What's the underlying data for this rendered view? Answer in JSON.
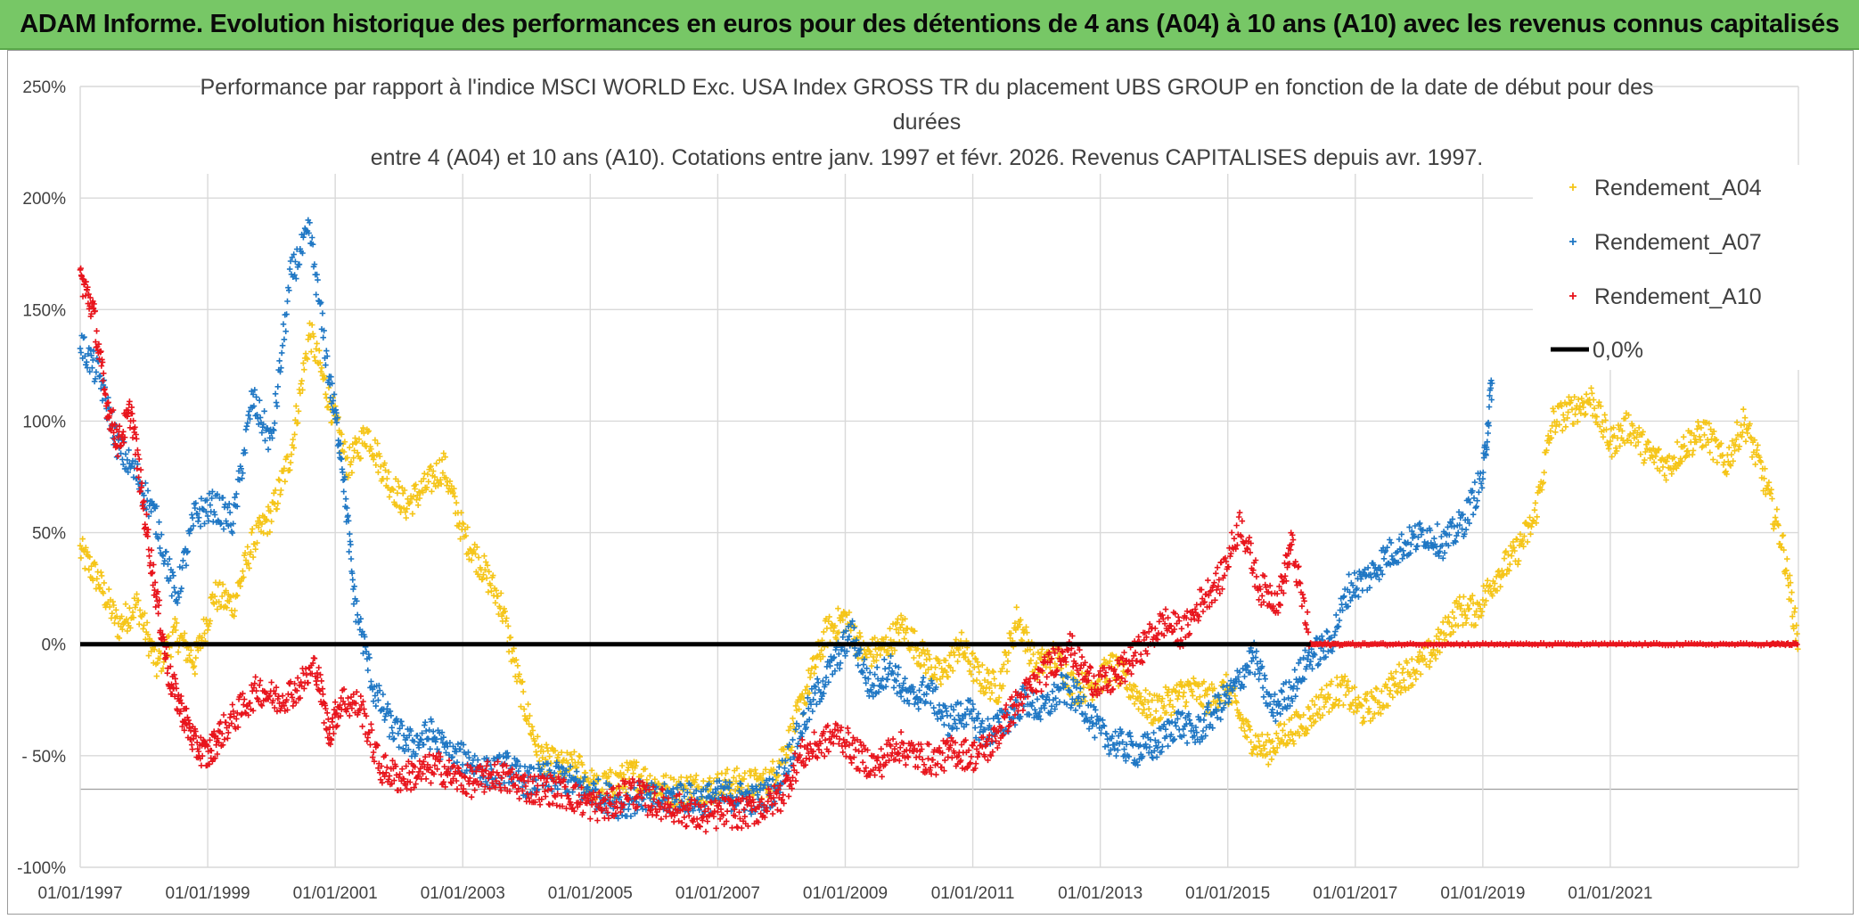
{
  "banner": {
    "text": "ADAM Informe. Evolution historique des performances en euros pour des détentions de 4 ans (A04) à 10 ans (A10) avec les revenus connus capitalisés"
  },
  "colors": {
    "A04": "#f5c518",
    "A07": "#1f77c4",
    "A10": "#e8141c",
    "zero": "#000000",
    "banner_bg": "#77c766"
  },
  "chart_data": {
    "type": "scatter",
    "title_lines": [
      "Performance par rapport à l'indice MSCI WORLD Exc. USA Index GROSS TR  du placement UBS GROUP en fonction de la date de début pour des",
      "durées",
      "entre 4 (A04) et 10 ans (A10). Cotations entre janv. 1997 et févr. 2026. Revenus CAPITALISES depuis avr. 1997."
    ],
    "ylim": [
      -100,
      250
    ],
    "yticks": [
      250,
      200,
      150,
      100,
      50,
      0,
      -50,
      -100
    ],
    "ytick_labels": [
      "250%",
      "200%",
      "150%",
      "100%",
      "50%",
      "0%",
      "- 50%",
      "-100%"
    ],
    "xlim": [
      1997.0,
      2023.95
    ],
    "xticks": [
      1997,
      1999,
      2001,
      2003,
      2005,
      2007,
      2009,
      2011,
      2013,
      2015,
      2017,
      2019,
      2021
    ],
    "xtick_labels": [
      "01/01/1997",
      "01/01/1999",
      "01/01/2001",
      "01/01/2003",
      "01/01/2005",
      "01/01/2007",
      "01/01/2009",
      "01/01/2011",
      "01/01/2013",
      "01/01/2015",
      "01/01/2017",
      "01/01/2019",
      "01/01/2021"
    ],
    "legend": {
      "position": "right",
      "items": [
        {
          "label": "Rendement_A04",
          "series": "A04"
        },
        {
          "label": "Rendement_A07",
          "series": "A07"
        },
        {
          "label": "Rendement_A10",
          "series": "A10"
        },
        {
          "label": "0,0%",
          "series": "zero"
        }
      ]
    },
    "series": [
      {
        "name": "Rendement_A04",
        "key": "A04",
        "x": [
          1997.0,
          1997.3,
          1997.6,
          1997.9,
          1998.2,
          1998.5,
          1998.8,
          1999.1,
          1999.4,
          1999.7,
          2000.0,
          2000.3,
          2000.6,
          2000.9,
          2001.2,
          2001.5,
          2001.8,
          2002.1,
          2002.4,
          2002.7,
          2003.0,
          2003.3,
          2003.6,
          2003.9,
          2004.2,
          2004.5,
          2004.8,
          2005.1,
          2005.4,
          2005.7,
          2006.0,
          2006.3,
          2006.6,
          2006.9,
          2007.2,
          2007.5,
          2007.8,
          2008.1,
          2008.4,
          2008.7,
          2009.0,
          2009.3,
          2009.6,
          2009.9,
          2010.2,
          2010.5,
          2010.8,
          2011.1,
          2011.4,
          2011.7,
          2012.0,
          2012.3,
          2012.6,
          2012.9,
          2013.2,
          2013.5,
          2013.8,
          2014.1,
          2014.4,
          2014.7,
          2015.0,
          2015.3,
          2015.6,
          2015.9,
          2016.2,
          2016.5,
          2016.8,
          2017.1,
          2017.4,
          2017.7,
          2018.0,
          2018.3,
          2018.6,
          2018.9,
          2019.2,
          2019.5,
          2019.8,
          2020.1,
          2020.4,
          2020.7,
          2021.0,
          2021.3,
          2021.6,
          2021.9,
          2022.2,
          2022.5,
          2022.8,
          2023.1,
          2023.4,
          2023.7,
          2023.95
        ],
        "y": [
          42,
          28,
          8,
          18,
          -10,
          5,
          -8,
          22,
          18,
          45,
          58,
          85,
          140,
          110,
          80,
          95,
          75,
          62,
          70,
          80,
          50,
          35,
          18,
          -20,
          -50,
          -55,
          -55,
          -65,
          -62,
          -58,
          -63,
          -66,
          -64,
          -65,
          -62,
          -63,
          -62,
          -45,
          -20,
          5,
          12,
          -5,
          -2,
          8,
          -5,
          -15,
          0,
          -15,
          -20,
          12,
          -10,
          -5,
          -20,
          -18,
          -10,
          -20,
          -30,
          -25,
          -20,
          -25,
          -20,
          -40,
          -48,
          -40,
          -35,
          -25,
          -20,
          -30,
          -25,
          -15,
          -10,
          0,
          15,
          15,
          30,
          40,
          55,
          100,
          105,
          110,
          90,
          98,
          85,
          80,
          90,
          95,
          80,
          100,
          75,
          45,
          0
        ]
      },
      {
        "name": "Rendement_A07",
        "key": "A07",
        "x": [
          1997.0,
          1997.3,
          1997.6,
          1997.9,
          1998.2,
          1998.5,
          1998.8,
          1999.1,
          1999.4,
          1999.7,
          2000.0,
          2000.3,
          2000.6,
          2000.9,
          2001.1,
          2001.3,
          2001.6,
          2001.9,
          2002.2,
          2002.5,
          2002.8,
          2003.1,
          2003.4,
          2003.7,
          2004.0,
          2004.3,
          2004.6,
          2004.9,
          2005.2,
          2005.5,
          2005.8,
          2006.1,
          2006.4,
          2006.7,
          2007.0,
          2007.3,
          2007.6,
          2007.9,
          2008.2,
          2008.5,
          2008.8,
          2009.1,
          2009.4,
          2009.7,
          2010.0,
          2010.3,
          2010.6,
          2010.9,
          2011.2,
          2011.5,
          2011.8,
          2012.1,
          2012.4,
          2012.7,
          2013.0,
          2013.3,
          2013.6,
          2013.9,
          2014.2,
          2014.5,
          2014.8,
          2015.1,
          2015.4,
          2015.7,
          2016.0,
          2016.3,
          2016.6,
          2016.9,
          2017.2,
          2017.5,
          2017.8,
          2018.1,
          2018.4,
          2018.7,
          2019.0,
          2019.15
        ],
        "y": [
          135,
          120,
          88,
          75,
          55,
          20,
          58,
          62,
          55,
          110,
          90,
          165,
          185,
          120,
          85,
          20,
          -20,
          -38,
          -45,
          -40,
          -50,
          -52,
          -58,
          -55,
          -62,
          -60,
          -60,
          -65,
          -68,
          -72,
          -68,
          -70,
          -68,
          -70,
          -68,
          -68,
          -70,
          -65,
          -45,
          -25,
          -10,
          5,
          -20,
          -10,
          -25,
          -20,
          -35,
          -30,
          -40,
          -35,
          -25,
          -30,
          -20,
          -25,
          -40,
          -45,
          -48,
          -45,
          -35,
          -40,
          -30,
          -20,
          -5,
          -30,
          -20,
          -5,
          0,
          25,
          30,
          40,
          45,
          50,
          45,
          55,
          75,
          120
        ]
      },
      {
        "name": "Rendement_A10",
        "key": "A10",
        "x": [
          1997.0,
          1997.2,
          1997.4,
          1997.6,
          1997.8,
          1998.0,
          1998.2,
          1998.4,
          1998.6,
          1998.8,
          1999.0,
          1999.2,
          1999.5,
          1999.8,
          2000.1,
          2000.4,
          2000.7,
          2000.9,
          2001.1,
          2001.4,
          2001.7,
          2002.0,
          2002.3,
          2002.6,
          2002.9,
          2003.2,
          2003.5,
          2003.8,
          2004.1,
          2004.4,
          2004.7,
          2005.0,
          2005.3,
          2005.6,
          2005.9,
          2006.2,
          2006.5,
          2006.8,
          2007.1,
          2007.4,
          2007.7,
          2008.0,
          2008.3,
          2008.6,
          2008.9,
          2009.2,
          2009.5,
          2009.8,
          2010.1,
          2010.4,
          2010.7,
          2011.0,
          2011.3,
          2011.6,
          2011.9,
          2012.2,
          2012.5,
          2012.8,
          2013.1,
          2013.4,
          2013.7,
          2014.0,
          2014.3,
          2014.6,
          2014.9,
          2015.2,
          2015.5,
          2015.8,
          2016.0,
          2016.3,
          2016.8,
          2017.5,
          2018.5,
          2019.5,
          2020.5,
          2021.5,
          2022.5,
          2023.5,
          2023.95
        ],
        "y": [
          165,
          150,
          110,
          90,
          105,
          60,
          20,
          -15,
          -30,
          -45,
          -50,
          -40,
          -30,
          -20,
          -25,
          -20,
          -10,
          -40,
          -25,
          -28,
          -55,
          -60,
          -58,
          -55,
          -60,
          -62,
          -58,
          -62,
          -65,
          -65,
          -68,
          -72,
          -73,
          -65,
          -70,
          -72,
          -75,
          -78,
          -75,
          -76,
          -73,
          -68,
          -50,
          -45,
          -40,
          -50,
          -55,
          -45,
          -50,
          -52,
          -48,
          -50,
          -45,
          -30,
          -20,
          -10,
          0,
          -15,
          -18,
          -10,
          0,
          10,
          5,
          20,
          30,
          55,
          25,
          20,
          45,
          0,
          0,
          0,
          0,
          0,
          0,
          0,
          0,
          0,
          0
        ]
      }
    ]
  }
}
